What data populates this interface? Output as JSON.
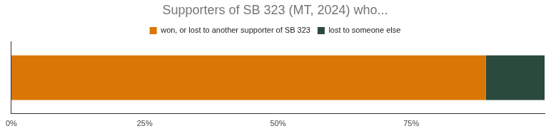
{
  "chart_data": {
    "type": "bar",
    "title": "Supporters of SB 323 (MT, 2024) who...",
    "orientation": "horizontal",
    "stacked": true,
    "legend": "top",
    "grid": false,
    "tick_labels": "x",
    "categories": [
      null
    ],
    "series": [
      {
        "name": "won, or lost to another supporter of SB 323",
        "color": "#d97706",
        "values": [
          89
        ]
      },
      {
        "name": "lost to someone else",
        "color": "#2b4a3e",
        "values": [
          11
        ]
      }
    ],
    "xlim": [
      0,
      100
    ],
    "xticks": [
      {
        "value": 0,
        "label": "0%"
      },
      {
        "value": 25,
        "label": "25%"
      },
      {
        "value": 50,
        "label": "50%"
      },
      {
        "value": 75,
        "label": "75%"
      }
    ]
  }
}
